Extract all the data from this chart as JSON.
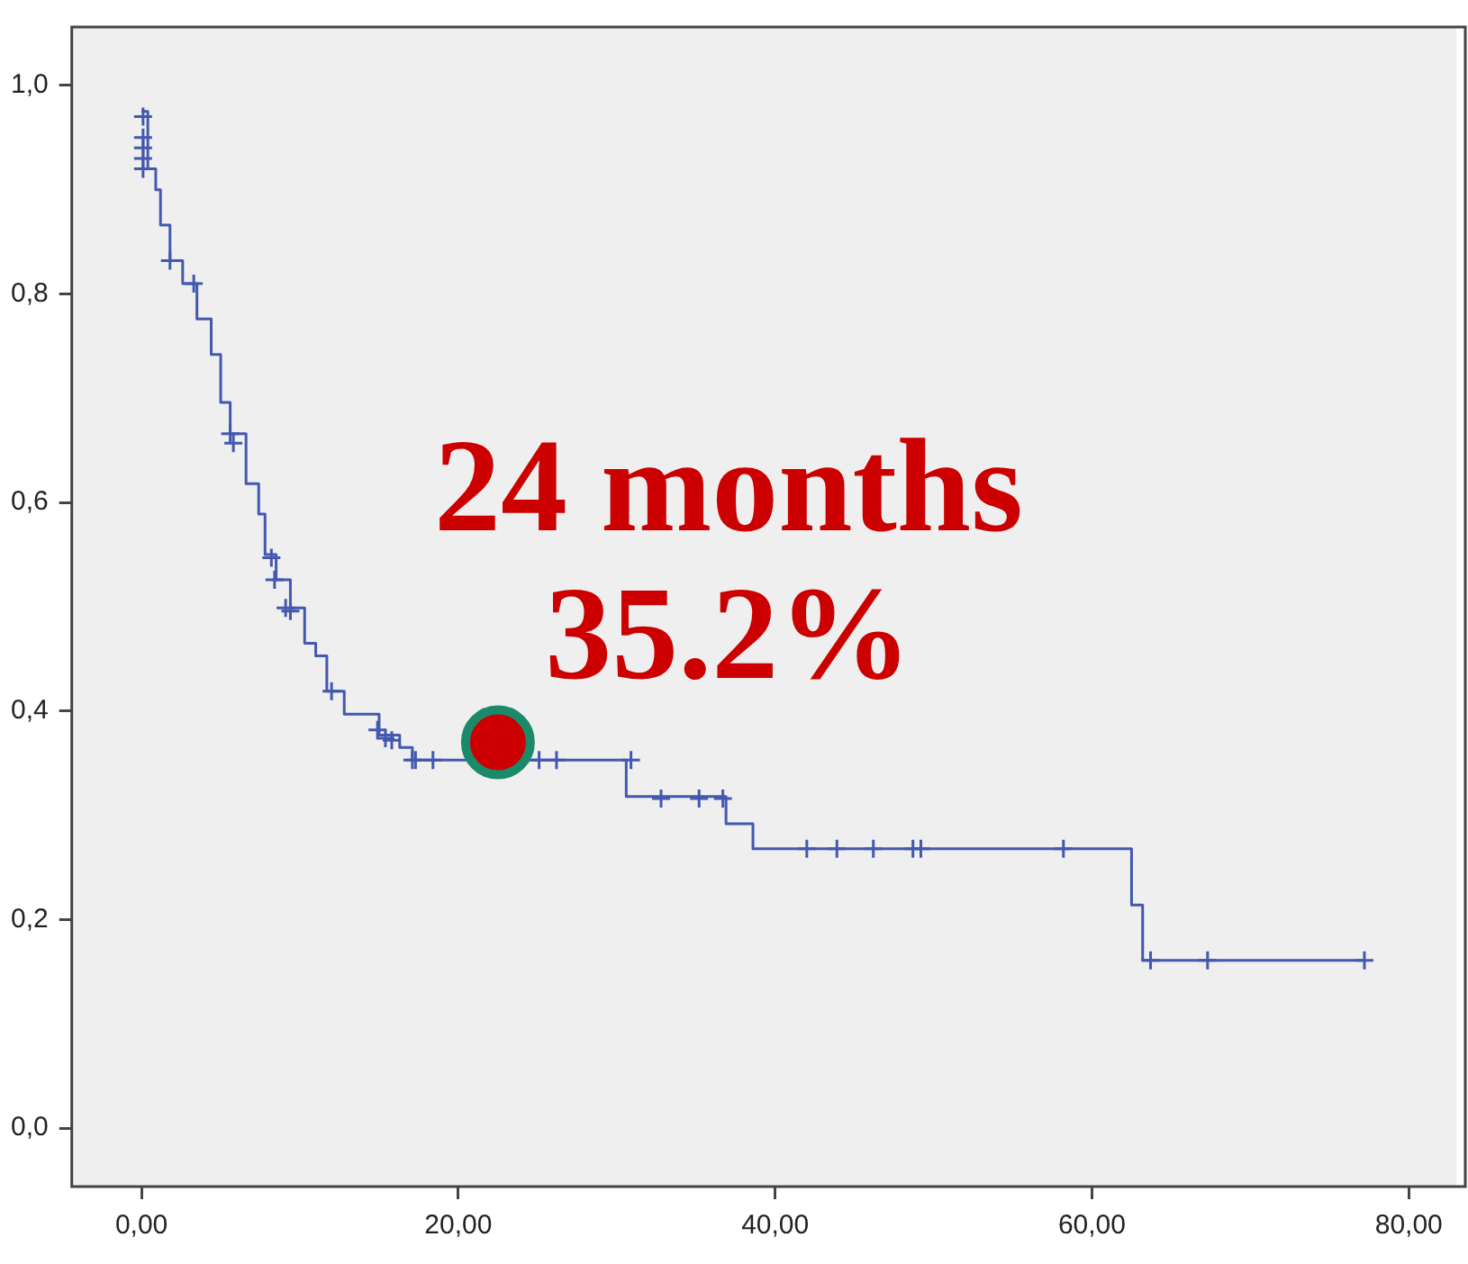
{
  "chart_data": {
    "type": "step",
    "xlim": [
      -4.4,
      83
    ],
    "ylim": [
      -0.056,
      1.056
    ],
    "xticks": [
      {
        "value": 0,
        "label": "0,00"
      },
      {
        "value": 20,
        "label": "20,00"
      },
      {
        "value": 40,
        "label": "40,00"
      },
      {
        "value": 60,
        "label": "60,00"
      },
      {
        "value": 80,
        "label": "80,00"
      }
    ],
    "yticks": [
      {
        "value": 0,
        "label": "0,0"
      },
      {
        "value": 0.2,
        "label": "0,2"
      },
      {
        "value": 0.4,
        "label": "0,4"
      },
      {
        "value": 0.6,
        "label": "0,6"
      },
      {
        "value": 0.8,
        "label": "0,8"
      },
      {
        "value": 1,
        "label": "1,0"
      }
    ],
    "grid": false,
    "legend": false,
    "series": [
      {
        "color": "#4358b0",
        "marker": "none",
        "x": [
          0,
          0.4,
          0.4,
          0.9,
          0.9,
          1.2,
          1.2,
          1.8,
          1.8,
          2.6,
          2.6,
          3.5,
          3.5,
          4.4,
          4.4,
          5.0,
          5.0,
          5.6,
          5.6,
          6.6,
          6.6,
          7.4,
          7.4,
          7.8,
          7.8,
          8.5,
          8.5,
          9.4,
          9.4,
          10.3,
          10.3,
          11.0,
          11.0,
          11.7,
          11.7,
          12.8,
          12.8,
          15.0,
          15.0,
          16.3,
          16.3,
          17.1,
          17.1,
          30.6,
          30.6,
          36.9,
          36.9,
          38.6,
          38.6,
          62.5,
          62.5,
          63.2,
          63.2,
          77.2
        ],
        "values": [
          0.975,
          0.975,
          0.92,
          0.92,
          0.9,
          0.9,
          0.866,
          0.866,
          0.832,
          0.832,
          0.81,
          0.81,
          0.776,
          0.776,
          0.742,
          0.742,
          0.696,
          0.696,
          0.666,
          0.666,
          0.618,
          0.618,
          0.589,
          0.589,
          0.55,
          0.55,
          0.526,
          0.526,
          0.499,
          0.499,
          0.465,
          0.465,
          0.453,
          0.453,
          0.419,
          0.419,
          0.397,
          0.397,
          0.377,
          0.377,
          0.365,
          0.365,
          0.353,
          0.353,
          0.318,
          0.318,
          0.292,
          0.292,
          0.268,
          0.268,
          0.214,
          0.214,
          0.161,
          0.161
        ]
      },
      {
        "type": "scatter",
        "color": "#4358b0",
        "marker": "cross",
        "x": [
          0.1,
          0.1,
          0.1,
          0.1,
          0.1,
          1.8,
          3.3,
          5.6,
          5.8,
          8.2,
          8.4,
          9.1,
          9.4,
          12.0,
          14.9,
          15.4,
          15.8,
          17.1,
          17.3,
          18.4,
          25.1,
          26.2,
          30.9,
          32.8,
          35.2,
          36.7,
          42.0,
          43.9,
          46.2,
          48.7,
          49.2,
          58.2,
          63.7,
          67.3,
          77.2
        ],
        "values": [
          0.97,
          0.95,
          0.94,
          0.93,
          0.92,
          0.832,
          0.81,
          0.666,
          0.657,
          0.547,
          0.526,
          0.499,
          0.496,
          0.419,
          0.382,
          0.374,
          0.372,
          0.353,
          0.353,
          0.353,
          0.353,
          0.353,
          0.353,
          0.316,
          0.316,
          0.316,
          0.268,
          0.268,
          0.268,
          0.268,
          0.268,
          0.268,
          0.161,
          0.161,
          0.161
        ]
      }
    ],
    "annotations": [
      {
        "text": "24 months\n35.2%",
        "x": 22.5,
        "y": 0.37
      }
    ]
  }
}
